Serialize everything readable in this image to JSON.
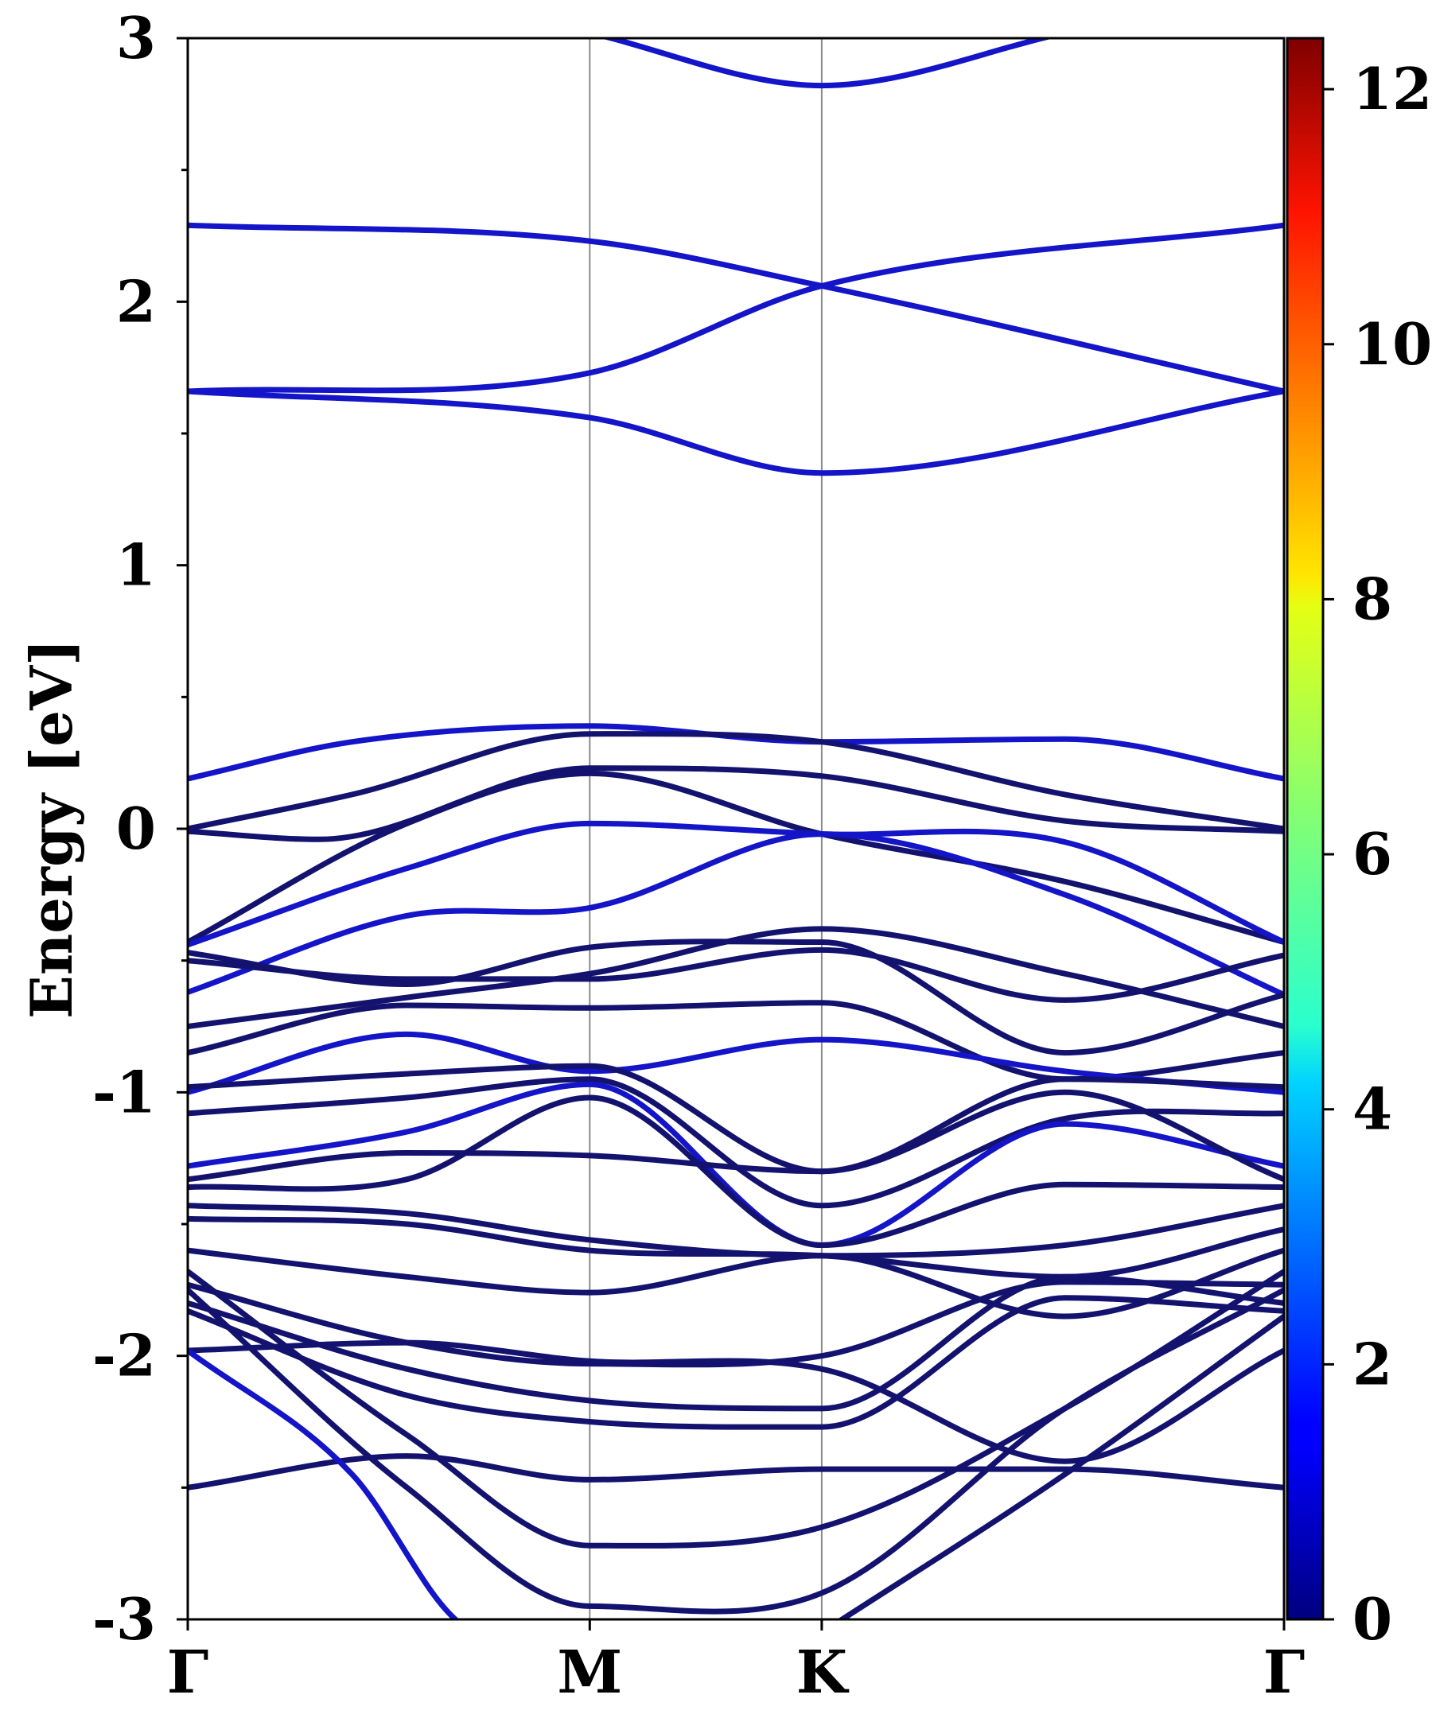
{
  "chart_data": {
    "type": "line",
    "title": "",
    "ylabel": "Energy [eV]",
    "xlabel": "",
    "ylim": [
      -3,
      3
    ],
    "yticks": [
      "-3",
      "-2",
      "-1",
      "0",
      "1",
      "2",
      "3"
    ],
    "kpoints": [
      {
        "label": "Γ",
        "x": 0
      },
      {
        "label": "M",
        "x": 0.3667
      },
      {
        "label": "K",
        "x": 0.5783
      },
      {
        "label": "Γ",
        "x": 1.0
      }
    ],
    "colorbar": {
      "min": 0,
      "max": 12.4,
      "ticks": [
        "0",
        "2",
        "4",
        "6",
        "8",
        "10",
        "12"
      ],
      "colormap": "jet"
    },
    "band_colors": {
      "dark": "#13136f",
      "bright": "#1414c8"
    },
    "bands": [
      {
        "x": [
          0,
          0.3667,
          0.5783,
          1.0
        ],
        "y": [
          2.29,
          2.23,
          2.06,
          1.66
        ],
        "tone": "bright"
      },
      {
        "x": [
          0,
          0.3667,
          0.5783,
          1.0
        ],
        "y": [
          1.66,
          1.73,
          2.06,
          2.29
        ],
        "tone": "bright"
      },
      {
        "x": [
          0,
          0.3667,
          0.5783,
          1.0
        ],
        "y": [
          1.66,
          1.56,
          1.35,
          1.66
        ],
        "tone": "bright"
      },
      {
        "x": [
          0.3667,
          0.5783,
          0.8
        ],
        "y": [
          3.02,
          2.82,
          3.02
        ],
        "tone": "bright"
      },
      {
        "x": [
          0,
          0.15,
          0.3667,
          0.5783,
          0.8,
          1.0
        ],
        "y": [
          0.19,
          0.33,
          0.39,
          0.33,
          0.34,
          0.19
        ],
        "tone": "bright"
      },
      {
        "x": [
          0,
          0.15,
          0.3667,
          0.5783,
          0.8,
          1.0
        ],
        "y": [
          0.0,
          0.13,
          0.36,
          0.33,
          0.13,
          0.0
        ],
        "tone": "dark"
      },
      {
        "x": [
          0,
          0.12,
          0.3667,
          0.5783,
          0.8,
          1.0
        ],
        "y": [
          -0.01,
          -0.04,
          0.23,
          0.2,
          0.03,
          -0.01
        ],
        "tone": "dark"
      },
      {
        "x": [
          0,
          0.2,
          0.3667,
          0.5783,
          0.8,
          1.0
        ],
        "y": [
          -0.43,
          0.02,
          0.21,
          -0.02,
          -0.2,
          -0.43
        ],
        "tone": "dark"
      },
      {
        "x": [
          0,
          0.2,
          0.3667,
          0.5783,
          0.8,
          1.0
        ],
        "y": [
          -0.44,
          -0.15,
          0.02,
          -0.02,
          -0.05,
          -0.43
        ],
        "tone": "bright"
      },
      {
        "x": [
          0,
          0.2,
          0.3667,
          0.5783,
          0.8,
          1.0
        ],
        "y": [
          -0.62,
          -0.33,
          -0.3,
          -0.02,
          -0.25,
          -0.63
        ],
        "tone": "bright"
      },
      {
        "x": [
          0,
          0.2,
          0.3667,
          0.5783,
          0.8,
          1.0
        ],
        "y": [
          -0.5,
          -0.57,
          -0.57,
          -0.46,
          -0.65,
          -0.48
        ],
        "tone": "dark"
      },
      {
        "x": [
          0,
          0.2,
          0.3667,
          0.5783,
          0.8,
          1.0
        ],
        "y": [
          -0.47,
          -0.59,
          -0.45,
          -0.43,
          -0.85,
          -0.63
        ],
        "tone": "dark"
      },
      {
        "x": [
          0,
          0.2,
          0.3667,
          0.5783,
          0.8,
          1.0
        ],
        "y": [
          -0.75,
          -0.64,
          -0.55,
          -0.38,
          -0.55,
          -0.75
        ],
        "tone": "dark"
      },
      {
        "x": [
          0,
          0.2,
          0.3667,
          0.5783,
          0.8,
          1.0
        ],
        "y": [
          -0.85,
          -0.67,
          -0.68,
          -0.66,
          -0.95,
          -0.85
        ],
        "tone": "dark"
      },
      {
        "x": [
          0,
          0.2,
          0.3667,
          0.5783,
          0.8,
          1.0
        ],
        "y": [
          -1.0,
          -0.78,
          -0.92,
          -0.8,
          -0.92,
          -1.0
        ],
        "tone": "bright"
      },
      {
        "x": [
          0,
          0.2,
          0.3667,
          0.5783,
          0.8,
          1.0
        ],
        "y": [
          -0.98,
          -0.93,
          -0.9,
          -1.3,
          -0.95,
          -0.98
        ],
        "tone": "dark"
      },
      {
        "x": [
          0,
          0.2,
          0.3667,
          0.5783,
          0.8,
          1.0
        ],
        "y": [
          -1.08,
          -1.02,
          -0.95,
          -1.43,
          -1.1,
          -1.08
        ],
        "tone": "dark"
      },
      {
        "x": [
          0,
          0.2,
          0.3667,
          0.5783,
          0.8,
          1.0
        ],
        "y": [
          -1.28,
          -1.15,
          -0.97,
          -1.58,
          -1.12,
          -1.28
        ],
        "tone": "bright"
      },
      {
        "x": [
          0,
          0.2,
          0.3667,
          0.5783,
          0.8,
          1.0
        ],
        "y": [
          -1.33,
          -1.23,
          -1.24,
          -1.3,
          -1.0,
          -1.33
        ],
        "tone": "dark"
      },
      {
        "x": [
          0,
          0.2,
          0.3667,
          0.5783,
          0.8,
          1.0
        ],
        "y": [
          -1.36,
          -1.33,
          -1.02,
          -1.58,
          -1.35,
          -1.36
        ],
        "tone": "dark"
      },
      {
        "x": [
          0,
          0.2,
          0.3667,
          0.5783,
          0.8,
          1.0
        ],
        "y": [
          -1.43,
          -1.46,
          -1.56,
          -1.62,
          -1.58,
          -1.43
        ],
        "tone": "dark"
      },
      {
        "x": [
          0,
          0.2,
          0.3667,
          0.5783,
          0.8,
          1.0
        ],
        "y": [
          -1.48,
          -1.5,
          -1.6,
          -1.62,
          -1.7,
          -1.52
        ],
        "tone": "dark"
      },
      {
        "x": [
          0,
          0.2,
          0.3667,
          0.5783,
          0.8,
          1.0
        ],
        "y": [
          -1.6,
          -1.7,
          -1.76,
          -1.62,
          -1.85,
          -1.6
        ],
        "tone": "dark"
      },
      {
        "x": [
          0,
          0.2,
          0.3667,
          0.5783,
          0.8,
          1.0
        ],
        "y": [
          -1.73,
          -1.95,
          -2.03,
          -2.0,
          -1.72,
          -1.73
        ],
        "tone": "dark"
      },
      {
        "x": [
          0,
          0.2,
          0.3667,
          0.5783,
          0.8,
          1.0
        ],
        "y": [
          -1.8,
          -2.05,
          -2.17,
          -2.2,
          -1.7,
          -1.8
        ],
        "tone": "dark"
      },
      {
        "x": [
          0,
          0.2,
          0.3667,
          0.5783,
          0.8,
          1.0
        ],
        "y": [
          -1.83,
          -2.15,
          -2.25,
          -2.27,
          -1.78,
          -1.83
        ],
        "tone": "dark"
      },
      {
        "x": [
          0,
          0.2,
          0.3667,
          0.5783,
          0.8,
          1.0
        ],
        "y": [
          -1.98,
          -1.95,
          -2.02,
          -2.05,
          -2.4,
          -1.98
        ],
        "tone": "dark"
      },
      {
        "x": [
          0,
          0.2,
          0.3667,
          0.5783,
          0.8,
          1.0
        ],
        "y": [
          -2.5,
          -2.38,
          -2.47,
          -2.43,
          -2.43,
          -2.5
        ],
        "tone": "dark"
      },
      {
        "x": [
          0,
          0.2,
          0.3667,
          0.5783,
          0.8,
          1.0
        ],
        "y": [
          -1.68,
          -2.3,
          -2.72,
          -2.65,
          -2.2,
          -1.68
        ],
        "tone": "dark"
      },
      {
        "x": [
          0,
          0.2,
          0.3667,
          0.5783,
          0.8,
          1.0
        ],
        "y": [
          -1.75,
          -2.5,
          -2.95,
          -2.9,
          -2.2,
          -1.75
        ],
        "tone": "dark"
      },
      {
        "x": [
          0,
          0.15,
          0.25,
          0.3667
        ],
        "y": [
          -1.98,
          -2.45,
          -3.02,
          -3.05
        ],
        "tone": "bright"
      },
      {
        "x": [
          0.5783,
          0.8,
          1.0
        ],
        "y": [
          -3.05,
          -2.45,
          -1.85
        ],
        "tone": "dark"
      }
    ]
  }
}
